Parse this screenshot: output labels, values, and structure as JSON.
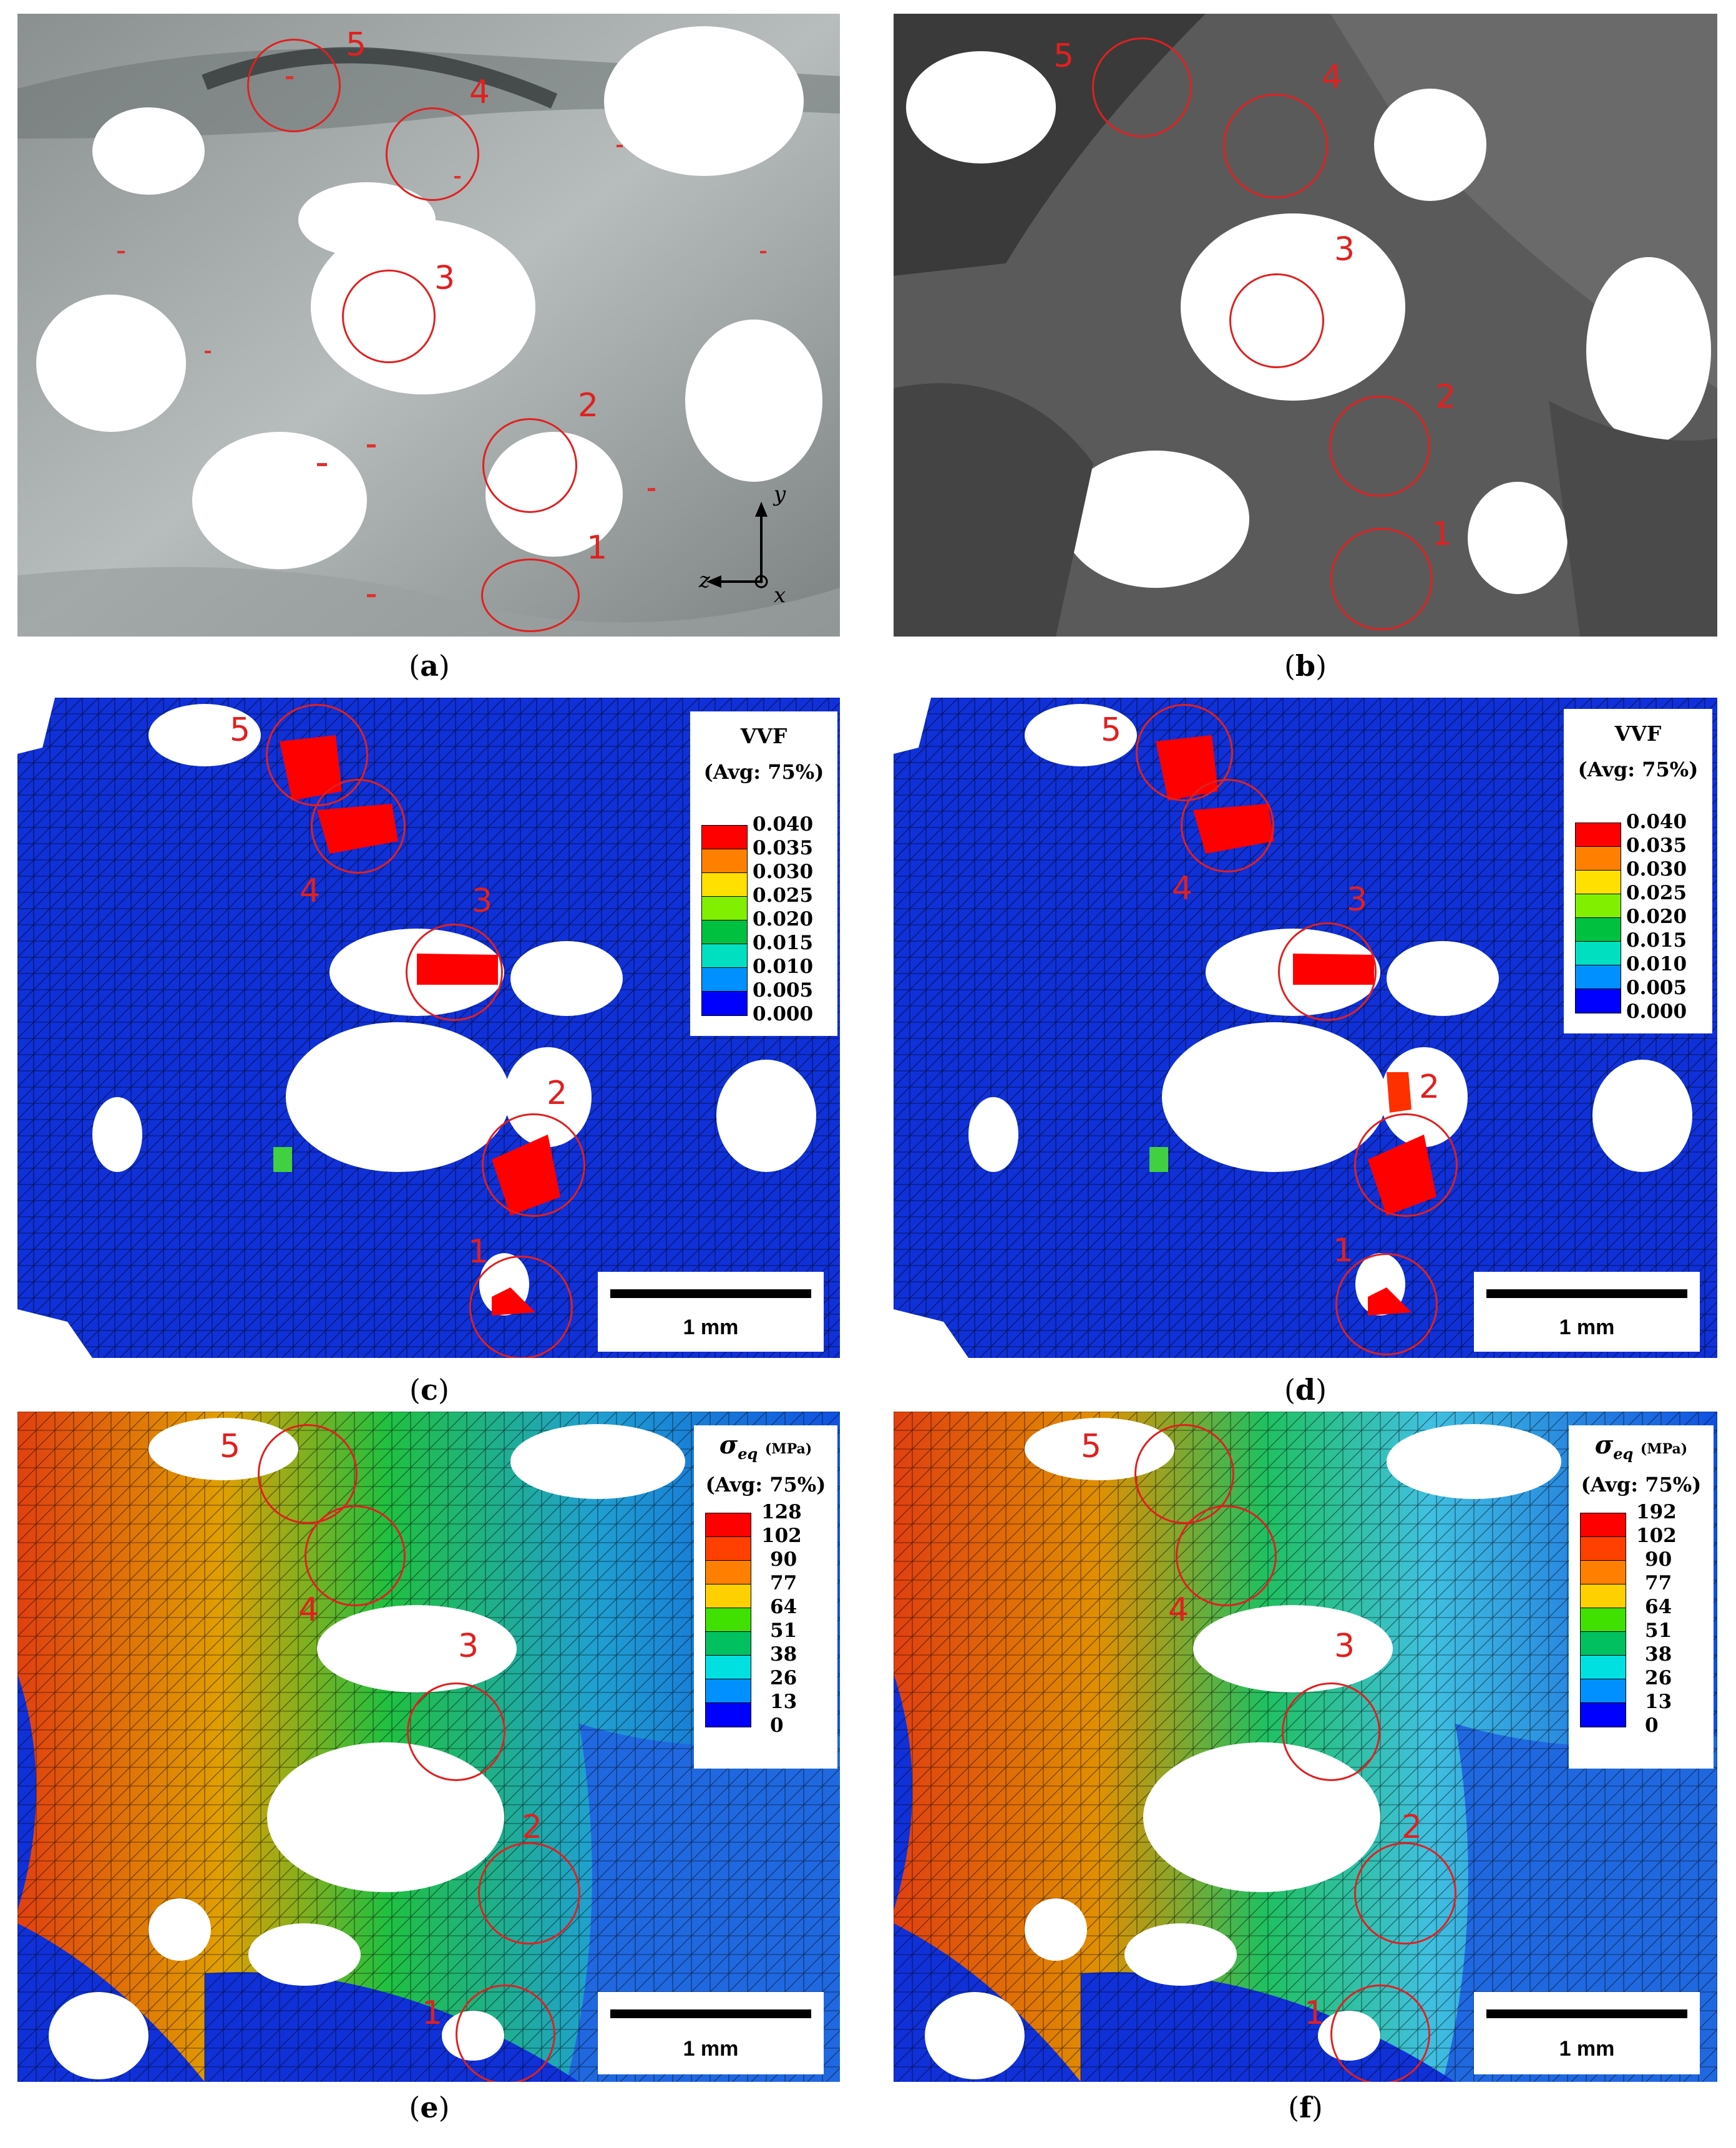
{
  "panels": [
    {
      "id": "a",
      "caption": "a",
      "kind": "render-transparent",
      "circle_labels": [
        "5",
        "4",
        "3",
        "2",
        "1"
      ],
      "axes": {
        "y": "y",
        "z": "z",
        "x": "x"
      }
    },
    {
      "id": "b",
      "caption": "b",
      "kind": "render-opaque",
      "circle_labels": [
        "5",
        "4",
        "3",
        "2",
        "1"
      ]
    },
    {
      "id": "c",
      "caption": "c",
      "kind": "vvf-mesh",
      "circle_labels": [
        "5",
        "4",
        "3",
        "2",
        "1"
      ],
      "legend": {
        "title": "VVF",
        "subtitle": "(Avg: 75%)",
        "ticks": [
          "0.040",
          "0.035",
          "0.030",
          "0.025",
          "0.020",
          "0.015",
          "0.010",
          "0.005",
          "0.000"
        ]
      },
      "scale_label": "1 mm"
    },
    {
      "id": "d",
      "caption": "d",
      "kind": "vvf-mesh",
      "circle_labels": [
        "5",
        "4",
        "3",
        "2",
        "1"
      ],
      "legend": {
        "title": "VVF",
        "subtitle": "(Avg: 75%)",
        "ticks": [
          "0.040",
          "0.035",
          "0.030",
          "0.025",
          "0.020",
          "0.015",
          "0.010",
          "0.005",
          "0.000"
        ]
      },
      "scale_label": "1 mm"
    },
    {
      "id": "e",
      "caption": "e",
      "kind": "stress-mesh",
      "circle_labels": [
        "5",
        "4",
        "3",
        "2",
        "1"
      ],
      "legend": {
        "symbol": "σ",
        "symbol_sub": "eq",
        "unit": "(MPa)",
        "subtitle": "(Avg: 75%)",
        "ticks": [
          "128",
          "102",
          "90",
          "77",
          "64",
          "51",
          "38",
          "26",
          "13",
          "0"
        ]
      },
      "scale_label": "1 mm"
    },
    {
      "id": "f",
      "caption": "f",
      "kind": "stress-mesh",
      "circle_labels": [
        "5",
        "4",
        "3",
        "2",
        "1"
      ],
      "legend": {
        "symbol": "σ",
        "symbol_sub": "eq",
        "unit": "(MPa)",
        "subtitle": "(Avg: 75%)",
        "ticks": [
          "192",
          "102",
          "90",
          "77",
          "64",
          "51",
          "38",
          "26",
          "13",
          "0"
        ]
      },
      "scale_label": "1 mm"
    }
  ],
  "colors": {
    "vvf_scale": [
      "#ff0000",
      "#ff8000",
      "#ffd000",
      "#c0f000",
      "#00e000",
      "#00c080",
      "#00f0d0",
      "#00a0ff",
      "#0000ff"
    ],
    "stress_scale": [
      "#ff0000",
      "#ff4000",
      "#ff8000",
      "#ffd000",
      "#d0f000",
      "#00e000",
      "#20d070",
      "#00e0e0",
      "#0090ff",
      "#0000ff"
    ],
    "circle": "#e02020",
    "mesh_blue": "#1030d8"
  }
}
